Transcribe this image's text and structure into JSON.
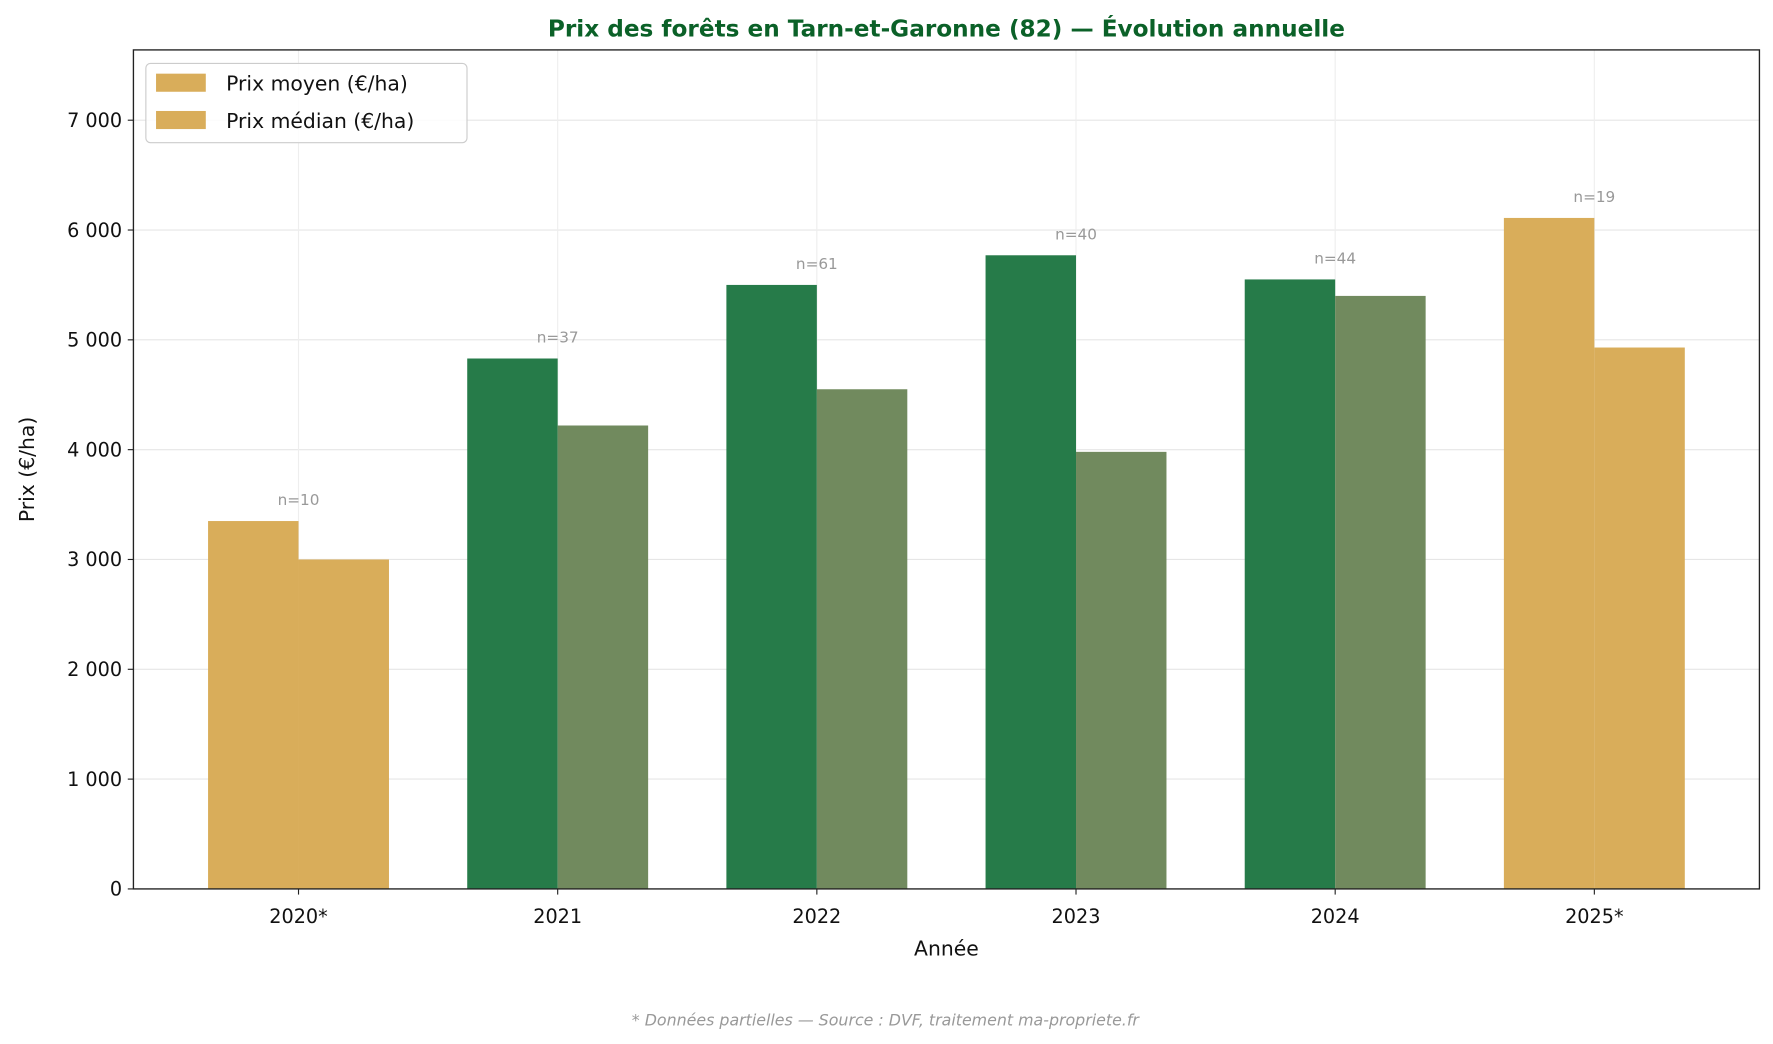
{
  "chart_data": {
    "type": "bar",
    "title": "Prix des forêts en Tarn-et-Garonne (82) — Évolution annuelle",
    "xlabel": "Année",
    "ylabel": "Prix (€/ha)",
    "footnote": "* Données partielles — Source : DVF, traitement ma-propriete.fr",
    "categories": [
      "2020*",
      "2021",
      "2022",
      "2023",
      "2024",
      "2025*"
    ],
    "partial": [
      true,
      false,
      false,
      false,
      false,
      true
    ],
    "series": [
      {
        "name": "Prix moyen (€/ha)",
        "values": [
          3350,
          4830,
          5500,
          5770,
          5550,
          6110
        ]
      },
      {
        "name": "Prix médian (€/ha)",
        "values": [
          3000,
          4220,
          4550,
          3980,
          5400,
          4930
        ]
      }
    ],
    "annotations": [
      "n=10",
      "n=37",
      "n=61",
      "n=40",
      "n=44",
      "n=19"
    ],
    "yticks": [
      0,
      1000,
      2000,
      3000,
      4000,
      5000,
      6000,
      7000
    ],
    "ytick_labels": [
      "0",
      "1 000",
      "2 000",
      "3 000",
      "4 000",
      "5 000",
      "6 000",
      "7 000"
    ],
    "ylim": [
      0,
      7640
    ],
    "grid": true,
    "legend_position": "top-left",
    "colors": {
      "mean": "#267B49",
      "median": "#718A5E",
      "partial": "#D9AD5A",
      "title": "#0B6128"
    }
  }
}
